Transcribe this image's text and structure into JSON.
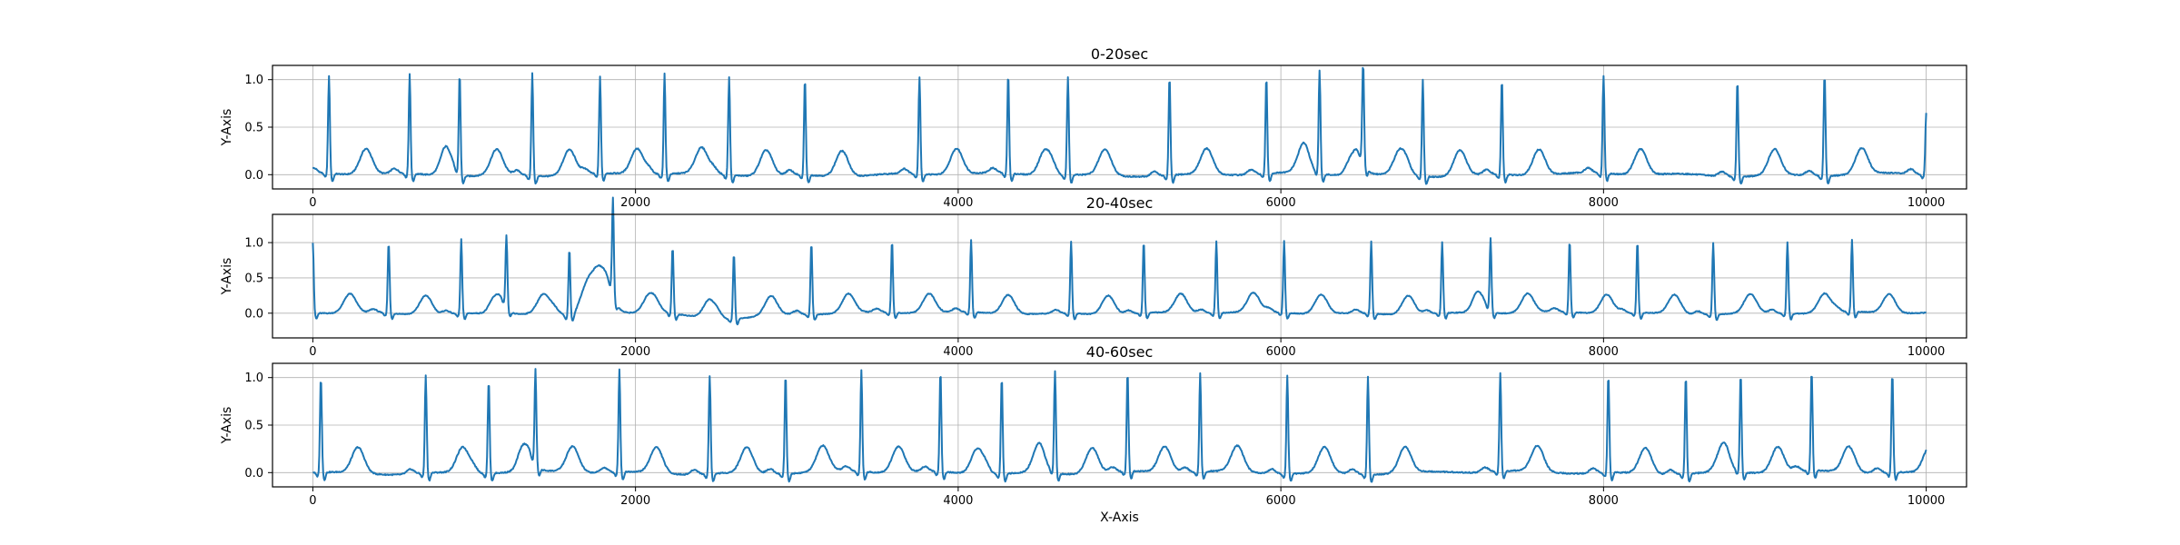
{
  "chart_data": {
    "type": "line",
    "line_color": "#1f77b4",
    "grid": true,
    "xlabel": "X-Axis",
    "ylabel": "Y-Axis",
    "xlim": [
      -250,
      10250
    ],
    "xticks": [
      0,
      2000,
      4000,
      6000,
      8000,
      10000
    ],
    "xtick_labels": [
      "0",
      "2000",
      "4000",
      "6000",
      "8000",
      "10000"
    ],
    "subplots": [
      {
        "title": "0-20sec",
        "ylim": [
          -0.15,
          1.15
        ],
        "yticks": [
          0.0,
          0.5,
          1.0
        ],
        "ytick_labels": [
          "0.0",
          "0.5",
          "1.0"
        ],
        "r_peaks": [
          {
            "x": 100,
            "y": 1.03
          },
          {
            "x": 600,
            "y": 1.05
          },
          {
            "x": 910,
            "y": 1.06
          },
          {
            "x": 1360,
            "y": 1.08
          },
          {
            "x": 1780,
            "y": 1.02
          },
          {
            "x": 2180,
            "y": 1.06
          },
          {
            "x": 2580,
            "y": 1.03
          },
          {
            "x": 3050,
            "y": 1.02
          },
          {
            "x": 3760,
            "y": 1.02
          },
          {
            "x": 4310,
            "y": 1.05
          },
          {
            "x": 4680,
            "y": 1.03
          },
          {
            "x": 5310,
            "y": 1.04
          },
          {
            "x": 5910,
            "y": 1.02
          },
          {
            "x": 6240,
            "y": 1.08
          },
          {
            "x": 6510,
            "y": 1.03
          },
          {
            "x": 6880,
            "y": 1.02
          },
          {
            "x": 7370,
            "y": 1.01
          },
          {
            "x": 8000,
            "y": 1.03
          },
          {
            "x": 8830,
            "y": 1.02
          },
          {
            "x": 9370,
            "y": 1.07
          },
          {
            "x": 10000,
            "y": 0.65
          }
        ]
      },
      {
        "title": "20-40sec",
        "ylim": [
          -0.35,
          1.4
        ],
        "yticks": [
          0.0,
          0.5,
          1.0
        ],
        "ytick_labels": [
          "0.0",
          "0.5",
          "1.0"
        ],
        "r_peaks": [
          {
            "x": 0,
            "y": 1.0
          },
          {
            "x": 470,
            "y": 1.01
          },
          {
            "x": 920,
            "y": 1.05
          },
          {
            "x": 1200,
            "y": 1.0
          },
          {
            "x": 1590,
            "y": 0.98
          },
          {
            "x": 1860,
            "y": 1.35
          },
          {
            "x": 2230,
            "y": 0.95
          },
          {
            "x": 2610,
            "y": 0.93
          },
          {
            "x": 3090,
            "y": 1.02
          },
          {
            "x": 3590,
            "y": 1.02
          },
          {
            "x": 4080,
            "y": 1.02
          },
          {
            "x": 4700,
            "y": 1.02
          },
          {
            "x": 5150,
            "y": 1.02
          },
          {
            "x": 5600,
            "y": 1.02
          },
          {
            "x": 6020,
            "y": 1.02
          },
          {
            "x": 6560,
            "y": 1.02
          },
          {
            "x": 7000,
            "y": 1.01
          },
          {
            "x": 7300,
            "y": 1.02
          },
          {
            "x": 7790,
            "y": 1.02
          },
          {
            "x": 8210,
            "y": 1.02
          },
          {
            "x": 8680,
            "y": 1.02
          },
          {
            "x": 9140,
            "y": 1.01
          },
          {
            "x": 9540,
            "y": 1.02
          }
        ]
      },
      {
        "title": "40-60sec",
        "xlabel": "X-Axis",
        "ylim": [
          -0.15,
          1.15
        ],
        "yticks": [
          0.0,
          0.5,
          1.0
        ],
        "ytick_labels": [
          "0.0",
          "0.5",
          "1.0"
        ],
        "r_peaks": [
          {
            "x": 50,
            "y": 1.01
          },
          {
            "x": 700,
            "y": 1.03
          },
          {
            "x": 1090,
            "y": 0.98
          },
          {
            "x": 1380,
            "y": 0.99
          },
          {
            "x": 1900,
            "y": 1.08
          },
          {
            "x": 2460,
            "y": 1.03
          },
          {
            "x": 2930,
            "y": 1.05
          },
          {
            "x": 3400,
            "y": 1.07
          },
          {
            "x": 3890,
            "y": 1.06
          },
          {
            "x": 4270,
            "y": 1.02
          },
          {
            "x": 4600,
            "y": 1.07
          },
          {
            "x": 5050,
            "y": 1.05
          },
          {
            "x": 5500,
            "y": 1.04
          },
          {
            "x": 6040,
            "y": 1.04
          },
          {
            "x": 6540,
            "y": 1.03
          },
          {
            "x": 7360,
            "y": 1.03
          },
          {
            "x": 8030,
            "y": 1.03
          },
          {
            "x": 8510,
            "y": 1.04
          },
          {
            "x": 8850,
            "y": 1.04
          },
          {
            "x": 9290,
            "y": 1.06
          },
          {
            "x": 9790,
            "y": 1.05
          }
        ]
      }
    ]
  }
}
